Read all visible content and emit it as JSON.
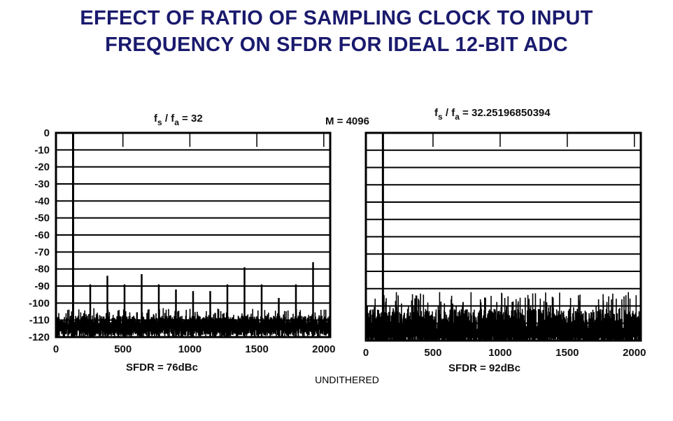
{
  "header": {
    "title_line1": "EFFECT OF RATIO OF SAMPLING CLOCK TO INPUT",
    "title_line2": "FREQUENCY ON SFDR FOR IDEAL 12-BIT ADC"
  },
  "middle_label": "M = 4096",
  "footer_label": "UNDITHERED",
  "colors": {
    "title": "#1a1a6e",
    "plot": "#000000"
  },
  "chart_data": [
    {
      "type": "line",
      "title_parts": {
        "f": "f",
        "sub_s": "s",
        "sep": " / ",
        "sub_a": "a",
        "rhs": " = 32"
      },
      "sfdr_label": "SFDR = 76dBc",
      "xlim": [
        0,
        2048
      ],
      "ylim": [
        -120,
        0
      ],
      "xticks": [
        0,
        500,
        1000,
        1500,
        2000
      ],
      "yticks": [
        0,
        -10,
        -20,
        -30,
        -40,
        -50,
        -60,
        -70,
        -80,
        -90,
        -100,
        -110,
        -120
      ],
      "grid": true,
      "fundamental": {
        "x": 128,
        "y": 0
      },
      "spurs": [
        {
          "x": 256,
          "y": -89
        },
        {
          "x": 384,
          "y": -84
        },
        {
          "x": 512,
          "y": -89
        },
        {
          "x": 640,
          "y": -83
        },
        {
          "x": 768,
          "y": -89
        },
        {
          "x": 896,
          "y": -92
        },
        {
          "x": 1024,
          "y": -93
        },
        {
          "x": 1152,
          "y": -93
        },
        {
          "x": 1280,
          "y": -89
        },
        {
          "x": 1408,
          "y": -79
        },
        {
          "x": 1536,
          "y": -89
        },
        {
          "x": 1664,
          "y": -97
        },
        {
          "x": 1792,
          "y": -89
        },
        {
          "x": 1920,
          "y": -76
        }
      ],
      "noise_floor": {
        "min": -120,
        "max": -103
      }
    },
    {
      "type": "line",
      "title_parts": {
        "f": "f",
        "sub_s": "s",
        "sep": " / ",
        "sub_a": "a",
        "rhs": " = 32.25196850394"
      },
      "sfdr_label": "SFDR = 92dBc",
      "xlim": [
        0,
        2048
      ],
      "ylim": [
        -120,
        0
      ],
      "xticks": [
        0,
        500,
        1000,
        1500,
        2000
      ],
      "grid": true,
      "fundamental": {
        "x": 127,
        "y": 0
      },
      "spurs": [],
      "noise_floor": {
        "min": -122,
        "max": -92
      }
    }
  ]
}
